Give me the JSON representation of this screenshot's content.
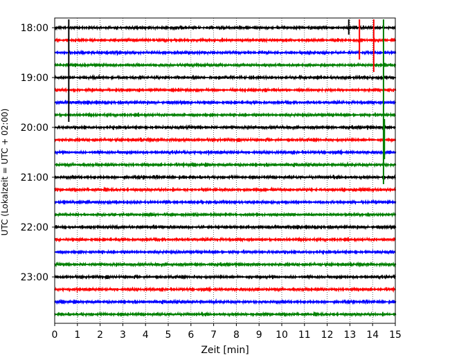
{
  "chart_data": {
    "type": "line",
    "title": "",
    "xlabel": "Zeit  [min]",
    "ylabel": "UTC (Lokalzeit = UTC + 02:00)",
    "xlim": [
      0,
      15
    ],
    "x_ticks": [
      "0",
      "1",
      "2",
      "3",
      "4",
      "5",
      "6",
      "7",
      "8",
      "9",
      "10",
      "11",
      "12",
      "13",
      "14",
      "15"
    ],
    "y_tick_labels": [
      "18:00",
      "19:00",
      "20:00",
      "21:00",
      "22:00",
      "23:00"
    ],
    "x_grid": "dotted vertical lines at each minute",
    "legend": "none",
    "row_interval_minutes": 15,
    "rows": [
      {
        "time": "18:00",
        "color": "#000000"
      },
      {
        "time": "18:15",
        "color": "#ff0000"
      },
      {
        "time": "18:30",
        "color": "#0000ff"
      },
      {
        "time": "18:45",
        "color": "#008000"
      },
      {
        "time": "19:00",
        "color": "#000000"
      },
      {
        "time": "19:15",
        "color": "#ff0000"
      },
      {
        "time": "19:30",
        "color": "#0000ff"
      },
      {
        "time": "19:45",
        "color": "#008000"
      },
      {
        "time": "20:00",
        "color": "#000000"
      },
      {
        "time": "20:15",
        "color": "#ff0000"
      },
      {
        "time": "20:30",
        "color": "#0000ff"
      },
      {
        "time": "20:45",
        "color": "#008000"
      },
      {
        "time": "21:00",
        "color": "#000000"
      },
      {
        "time": "21:15",
        "color": "#ff0000"
      },
      {
        "time": "21:30",
        "color": "#0000ff"
      },
      {
        "time": "21:45",
        "color": "#008000"
      },
      {
        "time": "22:00",
        "color": "#000000"
      },
      {
        "time": "22:15",
        "color": "#ff0000"
      },
      {
        "time": "22:30",
        "color": "#0000ff"
      },
      {
        "time": "22:45",
        "color": "#008000"
      },
      {
        "time": "23:00",
        "color": "#000000"
      },
      {
        "time": "23:15",
        "color": "#ff0000"
      },
      {
        "time": "23:30",
        "color": "#0000ff"
      },
      {
        "time": "23:45",
        "color": "#008000"
      }
    ],
    "spikes": [
      {
        "row": 0,
        "x": 0.62,
        "rows_spanned": 8,
        "color": "#000000"
      },
      {
        "row": 0,
        "x": 12.95,
        "rows_spanned": 1,
        "color": "#000000"
      },
      {
        "row": 0,
        "x": 13.42,
        "rows_spanned": 3,
        "color": "#ff0000"
      },
      {
        "row": 0,
        "x": 14.05,
        "rows_spanned": 4,
        "color": "#ff0000"
      },
      {
        "row": 0,
        "x": 14.48,
        "rows_spanned": 13,
        "color": "#008000"
      },
      {
        "row": 8,
        "x": 14.52,
        "rows_spanned": 3,
        "color": "#008000"
      }
    ]
  }
}
